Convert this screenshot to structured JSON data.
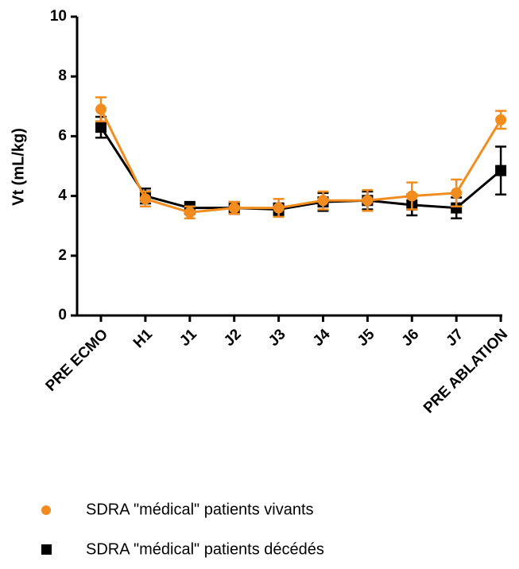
{
  "chart_data": {
    "type": "line",
    "y_label": "Vt (mL/kg)",
    "categories": [
      "PRE ECMO",
      "H1",
      "J1",
      "J2",
      "J3",
      "J4",
      "J5",
      "J6",
      "J7",
      "PRE ABLATION"
    ],
    "series": [
      {
        "name": "SDRA \"médical\" patients décédés",
        "color": "#000000",
        "marker": "square",
        "values": [
          6.3,
          4.0,
          3.6,
          3.6,
          3.55,
          3.8,
          3.85,
          3.7,
          3.6,
          4.85
        ],
        "errors": [
          0.35,
          0.25,
          0.2,
          0.2,
          0.2,
          0.3,
          0.3,
          0.35,
          0.35,
          0.8
        ]
      },
      {
        "name": "SDRA \"médical\" patients vivants",
        "color": "#f28c1e",
        "marker": "circle",
        "values": [
          6.9,
          3.9,
          3.45,
          3.6,
          3.6,
          3.85,
          3.85,
          4.0,
          4.1,
          6.55
        ],
        "errors": [
          0.4,
          0.25,
          0.2,
          0.2,
          0.3,
          0.3,
          0.35,
          0.45,
          0.45,
          0.3
        ]
      }
    ],
    "ylim": [
      0,
      10
    ],
    "yticks": [
      0,
      2,
      4,
      6,
      8,
      10
    ],
    "grid": false
  }
}
